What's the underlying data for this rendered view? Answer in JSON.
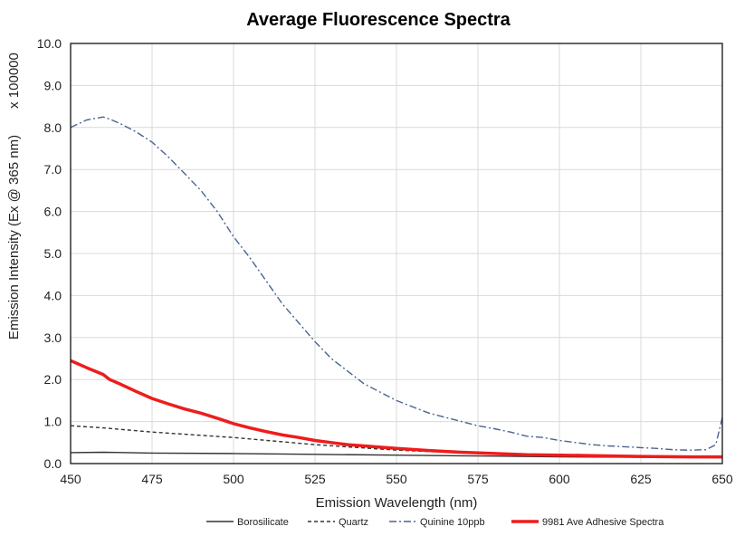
{
  "chart_data": {
    "type": "line",
    "title": "Average Fluorescence Spectra",
    "xlabel": "Emission Wavelength (nm)",
    "ylabel": "Emission Intensity (Ex @ 365 nm)",
    "y_multiplier": "x 100000",
    "xlim": [
      450,
      650
    ],
    "ylim": [
      0,
      10
    ],
    "x_ticks": [
      "450",
      "475",
      "500",
      "525",
      "550",
      "575",
      "600",
      "625",
      "650"
    ],
    "y_ticks": [
      "0.0",
      "1.0",
      "2.0",
      "3.0",
      "4.0",
      "5.0",
      "6.0",
      "7.0",
      "8.0",
      "9.0",
      "10.0"
    ],
    "grid": true,
    "legend_position": "bottom",
    "series": [
      {
        "name": "Borosilicate",
        "color": "#333333",
        "style": "solid",
        "x": [
          450,
          460,
          475,
          500,
          525,
          550,
          575,
          600,
          625,
          650
        ],
        "y": [
          0.26,
          0.27,
          0.25,
          0.24,
          0.22,
          0.2,
          0.18,
          0.16,
          0.15,
          0.14
        ]
      },
      {
        "name": "Quartz",
        "color": "#333333",
        "style": "dashed",
        "x": [
          450,
          460,
          475,
          500,
          525,
          550,
          575,
          600,
          625,
          650
        ],
        "y": [
          0.9,
          0.85,
          0.75,
          0.62,
          0.45,
          0.32,
          0.24,
          0.2,
          0.17,
          0.15
        ]
      },
      {
        "name": "Quinine 10ppb",
        "color": "#4a6490",
        "style": "dashdot",
        "x": [
          450,
          455,
          460,
          462,
          465,
          470,
          475,
          480,
          485,
          490,
          495,
          500,
          505,
          510,
          515,
          520,
          525,
          530,
          535,
          540,
          545,
          550,
          555,
          560,
          565,
          570,
          575,
          580,
          585,
          590,
          595,
          600,
          605,
          610,
          615,
          620,
          625,
          630,
          635,
          640,
          645,
          648,
          650
        ],
        "y": [
          8.0,
          8.18,
          8.25,
          8.2,
          8.1,
          7.9,
          7.65,
          7.3,
          6.9,
          6.5,
          6.0,
          5.4,
          4.9,
          4.35,
          3.8,
          3.35,
          2.9,
          2.5,
          2.2,
          1.9,
          1.7,
          1.5,
          1.35,
          1.2,
          1.1,
          1.0,
          0.9,
          0.83,
          0.75,
          0.65,
          0.62,
          0.55,
          0.5,
          0.45,
          0.42,
          0.4,
          0.38,
          0.36,
          0.33,
          0.32,
          0.33,
          0.45,
          1.1
        ]
      },
      {
        "name": "9981 Ave Adhesive Spectra",
        "color": "#ee1c1c",
        "style": "solid-thick",
        "x": [
          450,
          455,
          460,
          462,
          465,
          470,
          475,
          480,
          485,
          490,
          495,
          500,
          505,
          510,
          515,
          520,
          525,
          530,
          535,
          540,
          550,
          560,
          570,
          580,
          590,
          600,
          610,
          625,
          640,
          650
        ],
        "y": [
          2.45,
          2.28,
          2.12,
          2.0,
          1.9,
          1.72,
          1.55,
          1.42,
          1.3,
          1.2,
          1.08,
          0.95,
          0.85,
          0.76,
          0.68,
          0.62,
          0.55,
          0.5,
          0.45,
          0.42,
          0.36,
          0.31,
          0.27,
          0.24,
          0.21,
          0.2,
          0.19,
          0.17,
          0.16,
          0.16
        ]
      }
    ]
  }
}
